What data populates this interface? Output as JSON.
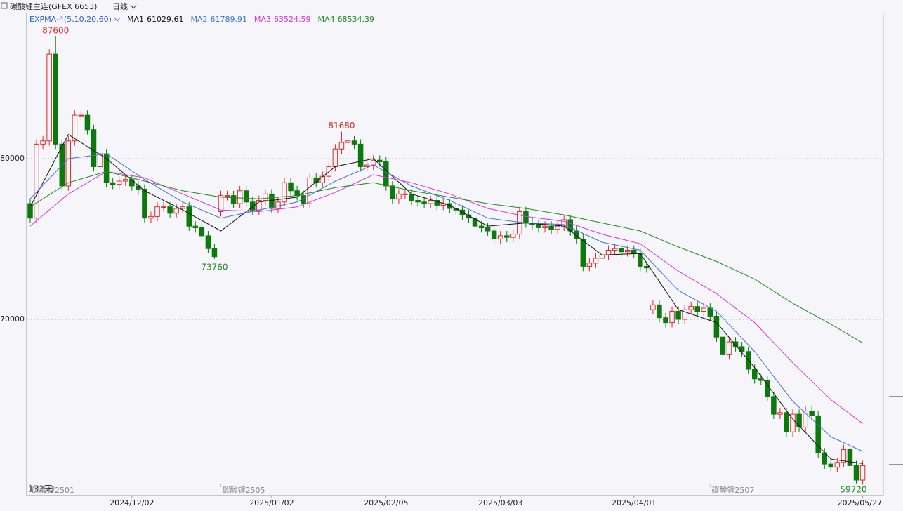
{
  "chart_data": {
    "type": "candlestick",
    "title": "碳酸锂主连(GFEX 6653)",
    "period": "日线",
    "indicator": "EXPMA-4(5,10,20,60)",
    "day_count": "132天",
    "up_color": "#e02828",
    "down_color": "#0b7a0b",
    "ylim": [
      59040,
      89080
    ],
    "yticks": [
      80000,
      70000
    ],
    "grid": true,
    "categories": [
      null,
      null,
      null,
      null,
      null,
      null,
      null,
      null,
      null,
      null,
      null,
      null,
      null,
      null,
      null,
      null,
      "2024/12/02",
      null,
      null,
      null,
      null,
      null,
      null,
      null,
      null,
      null,
      null,
      null,
      null,
      null,
      null,
      null,
      null,
      null,
      null,
      null,
      null,
      null,
      "2025/01/02",
      null,
      null,
      null,
      null,
      null,
      null,
      null,
      null,
      null,
      null,
      null,
      null,
      null,
      null,
      null,
      null,
      null,
      "2025/02/05",
      null,
      null,
      null,
      null,
      null,
      null,
      null,
      null,
      null,
      null,
      null,
      null,
      null,
      null,
      null,
      null,
      null,
      "2025/03/03",
      null,
      null,
      null,
      null,
      null,
      null,
      null,
      null,
      null,
      null,
      null,
      null,
      null,
      null,
      null,
      null,
      null,
      null,
      null,
      null,
      "2025/04/01",
      null,
      null,
      null,
      null,
      null,
      null,
      null,
      null,
      null,
      null,
      null,
      null,
      null,
      null,
      null,
      null,
      null,
      null,
      null,
      null,
      null,
      null,
      null,
      null,
      null,
      null,
      null,
      null,
      null,
      null,
      null,
      null,
      null,
      null,
      null,
      "2025/05/27"
    ],
    "contracts": [
      "碳酸锂2501",
      null,
      null,
      null,
      null,
      null,
      null,
      null,
      null,
      null,
      null,
      null,
      null,
      null,
      null,
      null,
      null,
      null,
      null,
      null,
      null,
      null,
      null,
      null,
      null,
      null,
      null,
      null,
      null,
      null,
      "碳酸锂2505",
      null,
      null,
      null,
      null,
      null,
      null,
      null,
      null,
      null,
      null,
      null,
      null,
      null,
      null,
      null,
      null,
      null,
      null,
      null,
      null,
      null,
      null,
      null,
      null,
      null,
      null,
      null,
      null,
      null,
      null,
      null,
      null,
      null,
      null,
      null,
      null,
      null,
      null,
      null,
      null,
      null,
      null,
      null,
      null,
      null,
      null,
      null,
      null,
      null,
      null,
      null,
      null,
      null,
      null,
      null,
      null,
      null,
      null,
      null,
      null,
      null,
      null,
      null,
      null,
      null,
      null,
      null,
      null,
      null,
      null,
      null,
      null,
      null,
      null,
      null,
      null,
      "碳酸锂2507",
      null,
      null,
      null,
      null,
      null,
      null,
      null,
      null,
      null,
      null,
      null,
      null,
      null,
      null,
      null,
      null,
      null,
      null,
      null,
      null,
      null,
      null,
      null,
      null
    ],
    "open": [
      77200,
      76300,
      80900,
      81100,
      86500,
      80900,
      78300,
      81100,
      82700,
      82700,
      81800,
      79500,
      80300,
      78500,
      78400,
      78600,
      78700,
      78300,
      78100,
      76300,
      76400,
      77000,
      77000,
      76600,
      76900,
      77000,
      75800,
      75700,
      75200,
      74400,
      76700,
      77700,
      77700,
      77200,
      78000,
      77300,
      76800,
      77400,
      77800,
      76900,
      77300,
      78500,
      78000,
      77700,
      77200,
      78800,
      78500,
      78900,
      79500,
      80600,
      81000,
      81100,
      80900,
      79500,
      79600,
      79900,
      79800,
      78300,
      77500,
      77800,
      77800,
      77400,
      77300,
      77200,
      77400,
      77100,
      77200,
      76900,
      76800,
      76500,
      76300,
      75800,
      75700,
      75500,
      75000,
      75200,
      75100,
      75300,
      76700,
      76000,
      75900,
      75700,
      75800,
      75600,
      75800,
      76200,
      75500,
      75000,
      73300,
      73500,
      73800,
      74000,
      74300,
      74400,
      74200,
      74300,
      74100,
      73300,
      70600,
      70900,
      70100,
      69800,
      70500,
      70000,
      70600,
      70800,
      70500,
      70700,
      70200,
      68900,
      67800,
      68600,
      68300,
      68000,
      66900,
      66300,
      66200,
      65200,
      64100,
      64200,
      63000,
      64100,
      63300,
      64300,
      64000,
      61700,
      61000,
      60800,
      61100,
      61900,
      60900,
      60000
    ],
    "high": [
      77500,
      81200,
      81400,
      86800,
      87600,
      81200,
      81400,
      83000,
      83000,
      83000,
      82100,
      80600,
      80600,
      78800,
      78900,
      79000,
      79000,
      78600,
      78400,
      76700,
      77300,
      77300,
      77300,
      77200,
      77300,
      77300,
      76100,
      76000,
      75500,
      74700,
      78000,
      78000,
      78000,
      78300,
      78300,
      77600,
      77700,
      78100,
      78100,
      77600,
      78800,
      78800,
      78300,
      78000,
      79100,
      79100,
      79200,
      79800,
      80900,
      81680,
      81400,
      81400,
      81200,
      79900,
      80200,
      80200,
      80100,
      78600,
      78100,
      78100,
      78100,
      77700,
      77600,
      77700,
      77700,
      77500,
      77500,
      77200,
      77100,
      76800,
      76600,
      76100,
      76000,
      75800,
      75500,
      75500,
      75600,
      77000,
      77000,
      76300,
      76200,
      76100,
      76100,
      76100,
      76500,
      76500,
      75800,
      75300,
      73800,
      74100,
      74300,
      74600,
      74700,
      74700,
      74600,
      74600,
      74400,
      73600,
      71200,
      71200,
      70400,
      70800,
      70800,
      70900,
      71100,
      71100,
      71000,
      71000,
      70500,
      69200,
      68900,
      68900,
      68600,
      68300,
      67200,
      66600,
      66500,
      65500,
      64500,
      64500,
      64400,
      64400,
      64600,
      64600,
      64300,
      62000,
      61300,
      61400,
      62200,
      62200,
      61200,
      61200
    ],
    "low": [
      76000,
      76000,
      80600,
      80800,
      80600,
      78000,
      78000,
      80800,
      82400,
      81500,
      79200,
      79200,
      78200,
      78100,
      78100,
      78300,
      78000,
      77800,
      76000,
      76000,
      76100,
      76700,
      76300,
      76300,
      76600,
      75500,
      75400,
      74900,
      74100,
      73760,
      76400,
      77400,
      76900,
      76900,
      77000,
      76500,
      76500,
      77100,
      76600,
      76600,
      77000,
      77700,
      77400,
      76900,
      76900,
      78200,
      78200,
      78600,
      79200,
      80300,
      80700,
      80600,
      79200,
      79200,
      79300,
      79500,
      78000,
      77200,
      77200,
      77500,
      77100,
      77000,
      76900,
      76900,
      76800,
      76800,
      76600,
      76500,
      76200,
      76000,
      75500,
      75400,
      75200,
      74700,
      74700,
      74800,
      74800,
      75000,
      75700,
      75600,
      75400,
      75400,
      75300,
      75300,
      75500,
      75200,
      74700,
      73000,
      73000,
      73200,
      73500,
      73700,
      74000,
      73900,
      73900,
      73800,
      73000,
      72900,
      70300,
      69800,
      69500,
      69500,
      69700,
      69700,
      70300,
      70200,
      70200,
      69900,
      68600,
      67500,
      67500,
      68000,
      67700,
      66600,
      66000,
      65900,
      64900,
      63800,
      63800,
      62700,
      62700,
      63000,
      63000,
      63700,
      61400,
      60700,
      60500,
      60500,
      60800,
      60600,
      59800,
      59720
    ],
    "close": [
      76300,
      80900,
      81100,
      86500,
      80900,
      78300,
      81100,
      82700,
      82700,
      81800,
      79500,
      80300,
      78500,
      78400,
      78600,
      78700,
      78300,
      78100,
      76300,
      76400,
      77000,
      77000,
      76600,
      76900,
      77000,
      75800,
      75700,
      75200,
      74400,
      73900,
      77700,
      77700,
      77200,
      78000,
      77300,
      76800,
      77400,
      77800,
      76900,
      77300,
      78500,
      78000,
      77700,
      77200,
      78800,
      78500,
      78900,
      79500,
      80600,
      81000,
      81100,
      80900,
      79500,
      79600,
      79900,
      79800,
      78300,
      77500,
      77800,
      77800,
      77400,
      77300,
      77200,
      77400,
      77100,
      77200,
      76900,
      76800,
      76500,
      76300,
      75800,
      75700,
      75500,
      75000,
      75200,
      75100,
      75300,
      76700,
      76000,
      75900,
      75700,
      75800,
      75600,
      75800,
      76200,
      75500,
      75000,
      73300,
      73500,
      73800,
      74000,
      74300,
      74400,
      74200,
      74300,
      74100,
      73300,
      73200,
      70900,
      70100,
      69800,
      70500,
      70000,
      70600,
      70800,
      70500,
      70700,
      70200,
      68900,
      67800,
      68600,
      68300,
      68000,
      66900,
      66300,
      66200,
      65200,
      64100,
      64200,
      63000,
      64100,
      63300,
      64300,
      64000,
      61700,
      61000,
      60800,
      61100,
      61900,
      60900,
      60000,
      60900
    ],
    "ma_x": [
      0,
      6,
      12,
      18,
      24,
      30,
      36,
      42,
      48,
      54,
      60,
      66,
      72,
      78,
      84,
      90,
      96,
      102,
      108,
      114,
      120,
      126,
      131
    ],
    "ma_series": [
      {
        "name": "MA1",
        "color": "#111111",
        "values": [
          77000,
          81500,
          80000,
          78000,
          76800,
          75500,
          77300,
          77600,
          79500,
          80000,
          77800,
          77100,
          75800,
          76000,
          75800,
          74000,
          74100,
          70600,
          69800,
          67000,
          63800,
          61300,
          61029.61
        ]
      },
      {
        "name": "MA2",
        "color": "#3f73d8",
        "values": [
          77500,
          80000,
          80300,
          78700,
          77300,
          76300,
          76800,
          77300,
          78600,
          79600,
          78300,
          77400,
          76300,
          76000,
          75900,
          74800,
          74300,
          71800,
          70500,
          68000,
          64900,
          62700,
          61789.91
        ]
      },
      {
        "name": "MA3",
        "color": "#e030e0",
        "values": [
          75800,
          77800,
          79200,
          78800,
          77800,
          76800,
          76700,
          77000,
          77900,
          79000,
          78500,
          77800,
          76900,
          76400,
          76100,
          75300,
          74700,
          73000,
          71600,
          69800,
          67300,
          65000,
          63524.59
        ]
      },
      {
        "name": "MA4",
        "color": "#1f8a1f",
        "values": [
          77000,
          78500,
          79200,
          78600,
          78000,
          77600,
          77500,
          77700,
          78200,
          78500,
          78000,
          77600,
          77200,
          76900,
          76500,
          76000,
          75500,
          74500,
          73600,
          72500,
          71000,
          69700,
          68534.39
        ]
      }
    ]
  }
}
